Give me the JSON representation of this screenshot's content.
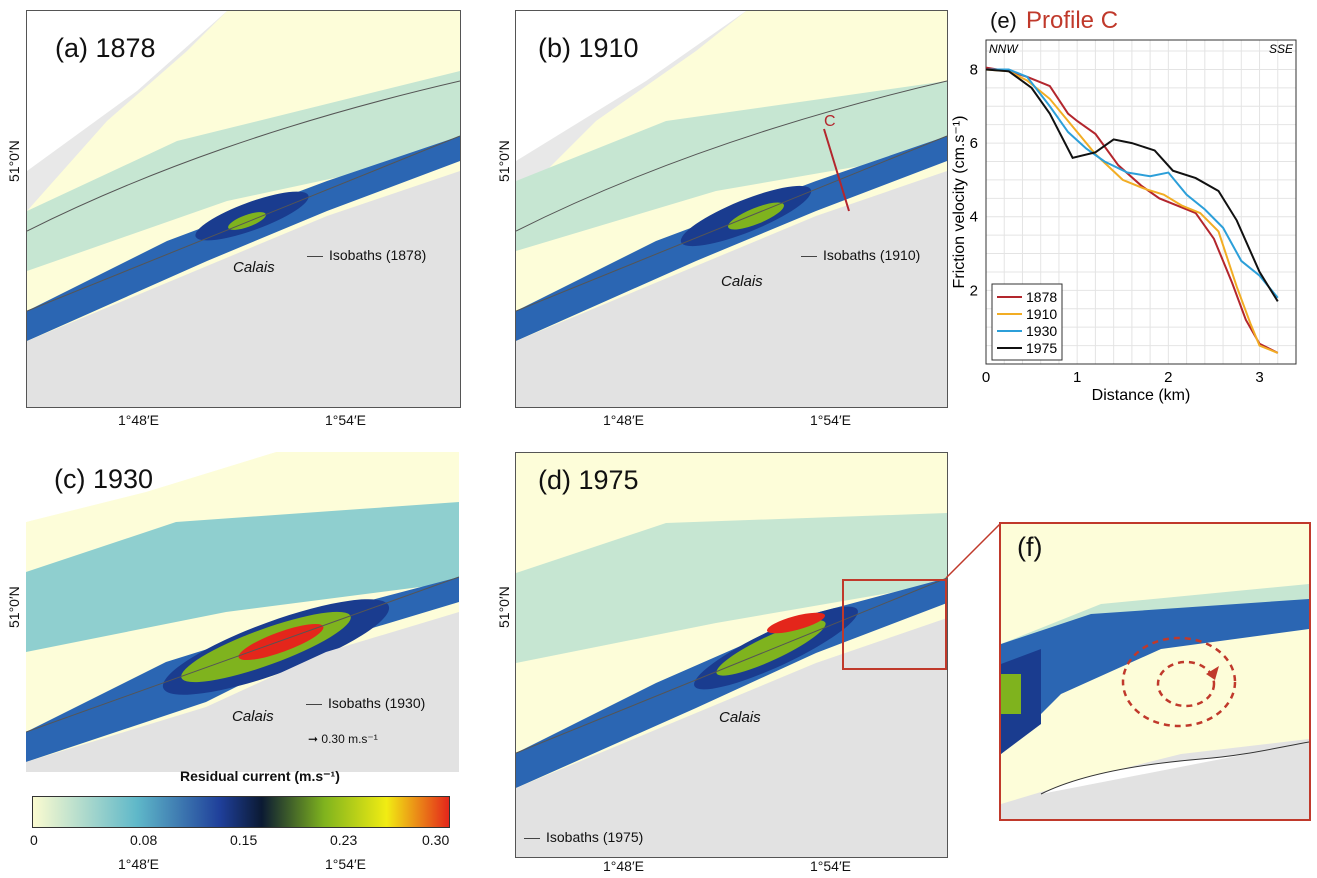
{
  "panels": {
    "a": {
      "label": "(a) 1878",
      "isobaths": "Isobaths (1878)"
    },
    "b": {
      "label": "(b) 1910",
      "isobaths": "Isobaths (1910)",
      "profile": "C"
    },
    "c": {
      "label": "(c) 1930",
      "isobaths": "Isobaths (1930)",
      "scale_arrow": "0.30 m.s⁻¹"
    },
    "d": {
      "label": "(d) 1975",
      "isobaths": "Isobaths (1975)"
    },
    "f": {
      "label": "(f)"
    }
  },
  "place": "Calais",
  "lat_tick": "51°0′N",
  "lon_ticks": [
    "1°48′E",
    "1°54′E"
  ],
  "colorbar": {
    "title": "Residual current (m.s⁻¹)",
    "ticks": [
      "0",
      "0.08",
      "0.15",
      "0.23",
      "0.30"
    ],
    "colors": [
      "#fbfbd0",
      "#5fb8c9",
      "#1f3f9a",
      "#0b1a33",
      "#7fb31e",
      "#f1ec13",
      "#e4261b"
    ]
  },
  "chart_data": {
    "type": "line",
    "title_prefix": "(e)",
    "title": "Profile C",
    "xlabel": "Distance (km)",
    "ylabel": "Friction velocity (cm.s⁻¹)",
    "xlim": [
      0,
      3.4
    ],
    "ylim": [
      0,
      8.8
    ],
    "xticks": [
      0,
      1,
      2,
      3
    ],
    "yticks": [
      2,
      4,
      6,
      8
    ],
    "grid": true,
    "corner_left": "NNW",
    "corner_right": "SSE",
    "legend_position": "bottom-left",
    "series": [
      {
        "name": "1878",
        "color": "#b3262d",
        "x": [
          0,
          0.25,
          0.45,
          0.7,
          0.9,
          1.0,
          1.2,
          1.45,
          1.7,
          1.9,
          2.1,
          2.3,
          2.5,
          2.7,
          2.85,
          3.0,
          3.2
        ],
        "y": [
          8.05,
          7.95,
          7.8,
          7.55,
          6.8,
          6.6,
          6.25,
          5.4,
          4.85,
          4.5,
          4.3,
          4.1,
          3.4,
          2.2,
          1.2,
          0.55,
          0.3
        ]
      },
      {
        "name": "1910",
        "color": "#f2ad24",
        "x": [
          0,
          0.25,
          0.45,
          0.7,
          0.9,
          1.0,
          1.2,
          1.5,
          1.75,
          1.95,
          2.15,
          2.35,
          2.55,
          2.75,
          2.9,
          3.0,
          3.2
        ],
        "y": [
          8.0,
          7.95,
          7.7,
          7.2,
          6.6,
          6.3,
          5.7,
          5.0,
          4.75,
          4.6,
          4.3,
          4.1,
          3.6,
          2.1,
          1.1,
          0.5,
          0.3
        ]
      },
      {
        "name": "1930",
        "color": "#2c9fd9",
        "x": [
          0,
          0.25,
          0.45,
          0.7,
          0.9,
          1.1,
          1.3,
          1.55,
          1.8,
          2.0,
          2.2,
          2.4,
          2.6,
          2.8,
          3.0,
          3.2
        ],
        "y": [
          8.0,
          8.0,
          7.8,
          7.0,
          6.3,
          5.85,
          5.5,
          5.2,
          5.1,
          5.2,
          4.6,
          4.2,
          3.7,
          2.8,
          2.4,
          1.8
        ]
      },
      {
        "name": "1975",
        "color": "#111111",
        "x": [
          0,
          0.25,
          0.5,
          0.7,
          0.95,
          1.2,
          1.4,
          1.6,
          1.85,
          2.05,
          2.3,
          2.55,
          2.75,
          3.0,
          3.2
        ],
        "y": [
          8.0,
          7.95,
          7.5,
          6.8,
          5.6,
          5.75,
          6.1,
          6.0,
          5.8,
          5.25,
          5.05,
          4.7,
          3.9,
          2.5,
          1.7
        ]
      }
    ]
  }
}
